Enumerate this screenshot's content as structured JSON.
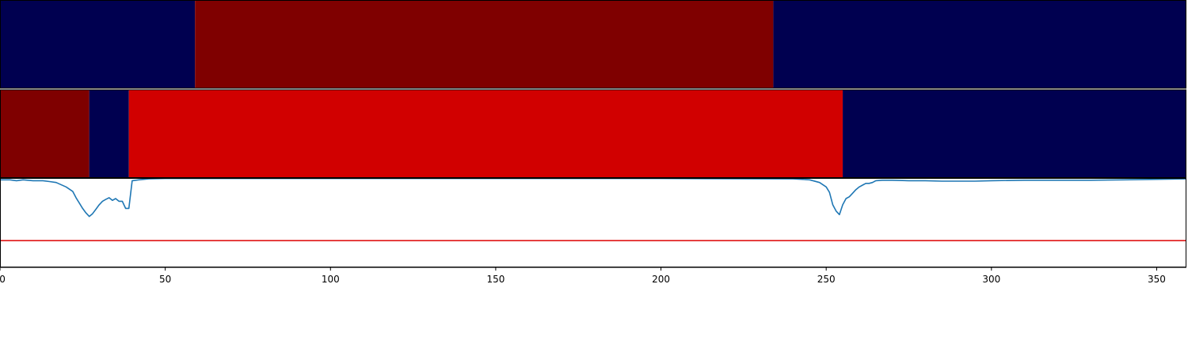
{
  "chart_data": {
    "type": "heatmap",
    "title": "",
    "xlabel": "",
    "ylabel": "",
    "xlim": [
      0,
      359
    ],
    "x_ticks": [
      "0",
      "50",
      "100",
      "150",
      "200",
      "250",
      "300",
      "350"
    ],
    "x_tick_values": [
      0,
      50,
      100,
      150,
      200,
      250,
      300,
      350
    ],
    "colors": {
      "navy": "#000050",
      "dark_red": "#7f0000",
      "red": "#d10000",
      "line": "#1f77b4",
      "threshold": "#dd0000"
    },
    "tracks": [
      {
        "segments": [
          {
            "start": 0,
            "end": 59,
            "color": "navy"
          },
          {
            "start": 59,
            "end": 234,
            "color": "dark_red"
          },
          {
            "start": 234,
            "end": 359,
            "color": "navy"
          }
        ]
      },
      {
        "segments": [
          {
            "start": 0,
            "end": 27,
            "color": "dark_red"
          },
          {
            "start": 27,
            "end": 39,
            "color": "navy"
          },
          {
            "start": 39,
            "end": 255,
            "color": "red"
          },
          {
            "start": 255,
            "end": 359,
            "color": "navy"
          }
        ]
      }
    ],
    "line_panel": {
      "ylim": [
        0,
        1
      ],
      "threshold": 0.3,
      "series": {
        "x": [
          0,
          3,
          5,
          7,
          10,
          13,
          15,
          17,
          20,
          22,
          23,
          24,
          25,
          26,
          27,
          28,
          29,
          30,
          31,
          32,
          33,
          34,
          35,
          36,
          37,
          38,
          39,
          40,
          42,
          45,
          50,
          60,
          80,
          120,
          160,
          200,
          240,
          245,
          248,
          250,
          251,
          252,
          253,
          254,
          255,
          256,
          257,
          258,
          259,
          260,
          261,
          262,
          263,
          264,
          265,
          267,
          270,
          275,
          280,
          285,
          290,
          295,
          300,
          310,
          320,
          330,
          340,
          350,
          359
        ],
        "y": [
          0.98,
          0.98,
          0.97,
          0.98,
          0.97,
          0.97,
          0.96,
          0.95,
          0.9,
          0.85,
          0.78,
          0.72,
          0.66,
          0.61,
          0.57,
          0.6,
          0.65,
          0.7,
          0.74,
          0.76,
          0.78,
          0.75,
          0.77,
          0.74,
          0.74,
          0.66,
          0.66,
          0.97,
          0.98,
          0.99,
          0.995,
          0.995,
          0.995,
          0.995,
          0.995,
          0.995,
          0.99,
          0.98,
          0.95,
          0.9,
          0.84,
          0.7,
          0.63,
          0.59,
          0.7,
          0.77,
          0.79,
          0.83,
          0.87,
          0.9,
          0.92,
          0.94,
          0.94,
          0.95,
          0.97,
          0.975,
          0.975,
          0.97,
          0.97,
          0.965,
          0.965,
          0.965,
          0.97,
          0.975,
          0.975,
          0.975,
          0.98,
          0.985,
          0.99
        ]
      }
    }
  }
}
